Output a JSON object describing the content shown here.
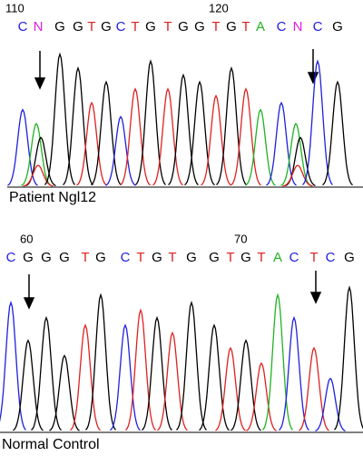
{
  "panels": [
    {
      "positions": [
        "110",
        "120"
      ],
      "bases": [
        "C",
        "N",
        "G",
        "G",
        "T",
        "G",
        "C",
        "T",
        "G",
        "T",
        "G",
        "G",
        "T",
        "G",
        "T",
        "A",
        "C",
        "N",
        "C",
        "G"
      ],
      "label": "Patient Ngl12"
    },
    {
      "positions": [
        "60",
        "70"
      ],
      "bases": [
        "C",
        "G",
        "G",
        "G",
        "T",
        "G",
        "C",
        "T",
        "G",
        "T",
        "G",
        "G",
        "T",
        "G",
        "T",
        "A",
        "C",
        "T",
        "C",
        "G"
      ],
      "label": "Normal Control"
    }
  ]
}
